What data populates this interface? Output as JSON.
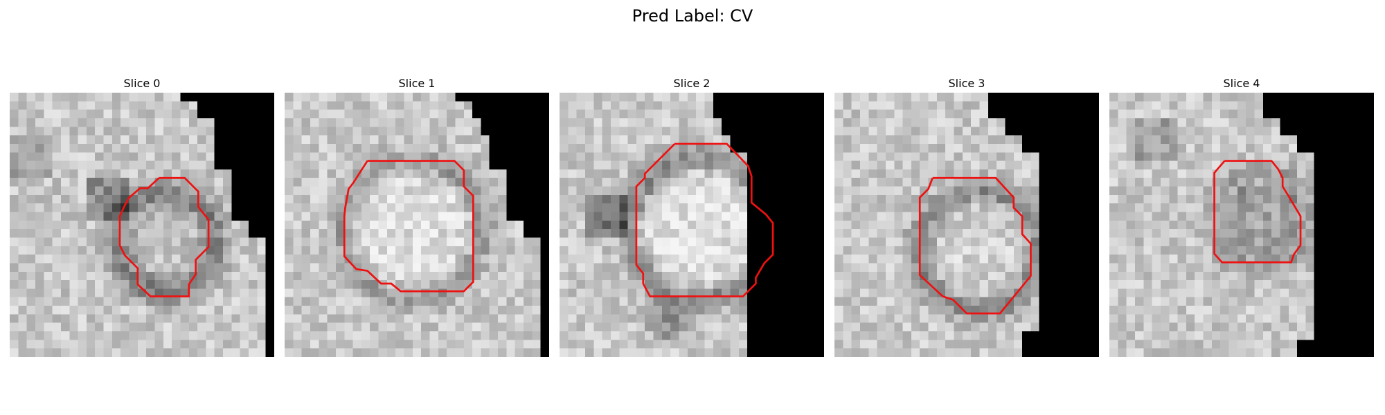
{
  "figure": {
    "title": "Pred Label: CV",
    "contour_color": "#ee1111",
    "background_color": "#ffffff"
  },
  "slices": [
    {
      "title": "Slice 0"
    },
    {
      "title": "Slice 1"
    },
    {
      "title": "Slice 2"
    },
    {
      "title": "Slice 3"
    },
    {
      "title": "Slice 4"
    }
  ]
}
